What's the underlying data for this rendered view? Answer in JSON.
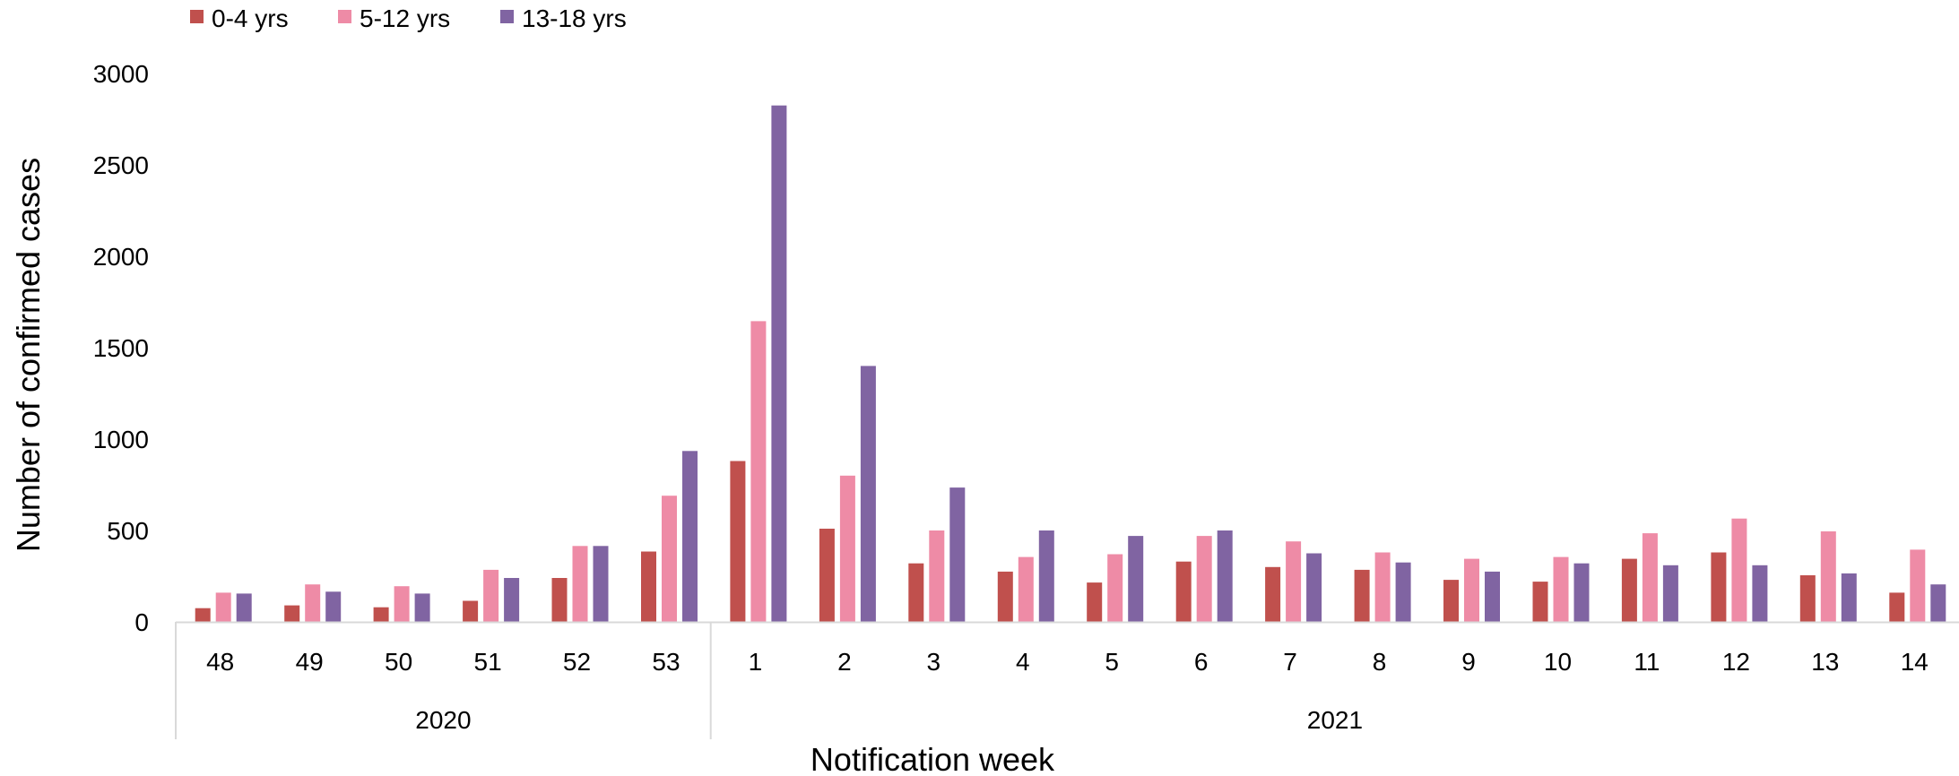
{
  "chart_data": {
    "type": "bar",
    "xlabel": "Notification week",
    "ylabel": "Number of confirmed cases",
    "ylim": [
      0,
      3000
    ],
    "yticks": [
      "0",
      "500",
      "1000",
      "1500",
      "2000",
      "2500",
      "3000"
    ],
    "legend_position": "top-left",
    "grid": false,
    "categories": [
      "48",
      "49",
      "50",
      "51",
      "52",
      "53",
      "1",
      "2",
      "3",
      "4",
      "5",
      "6",
      "7",
      "8",
      "9",
      "10",
      "11",
      "12",
      "13",
      "14"
    ],
    "groups": [
      {
        "label": "2020",
        "count": 6
      },
      {
        "label": "2021",
        "count": 14
      }
    ],
    "series": [
      {
        "name": "0-4 yrs",
        "color": "#c0504d",
        "values": [
          75,
          90,
          80,
          115,
          240,
          385,
          880,
          510,
          320,
          275,
          215,
          330,
          300,
          285,
          230,
          220,
          345,
          380,
          255,
          160
        ]
      },
      {
        "name": "5-12 yrs",
        "color": "#ee8ba6",
        "values": [
          160,
          205,
          195,
          285,
          415,
          690,
          1645,
          800,
          500,
          355,
          370,
          470,
          440,
          380,
          345,
          355,
          485,
          565,
          495,
          395
        ]
      },
      {
        "name": "13-18 yrs",
        "color": "#8064a2",
        "values": [
          155,
          165,
          155,
          240,
          415,
          935,
          2825,
          1400,
          735,
          500,
          470,
          500,
          375,
          325,
          275,
          320,
          310,
          310,
          265,
          205
        ]
      }
    ]
  }
}
